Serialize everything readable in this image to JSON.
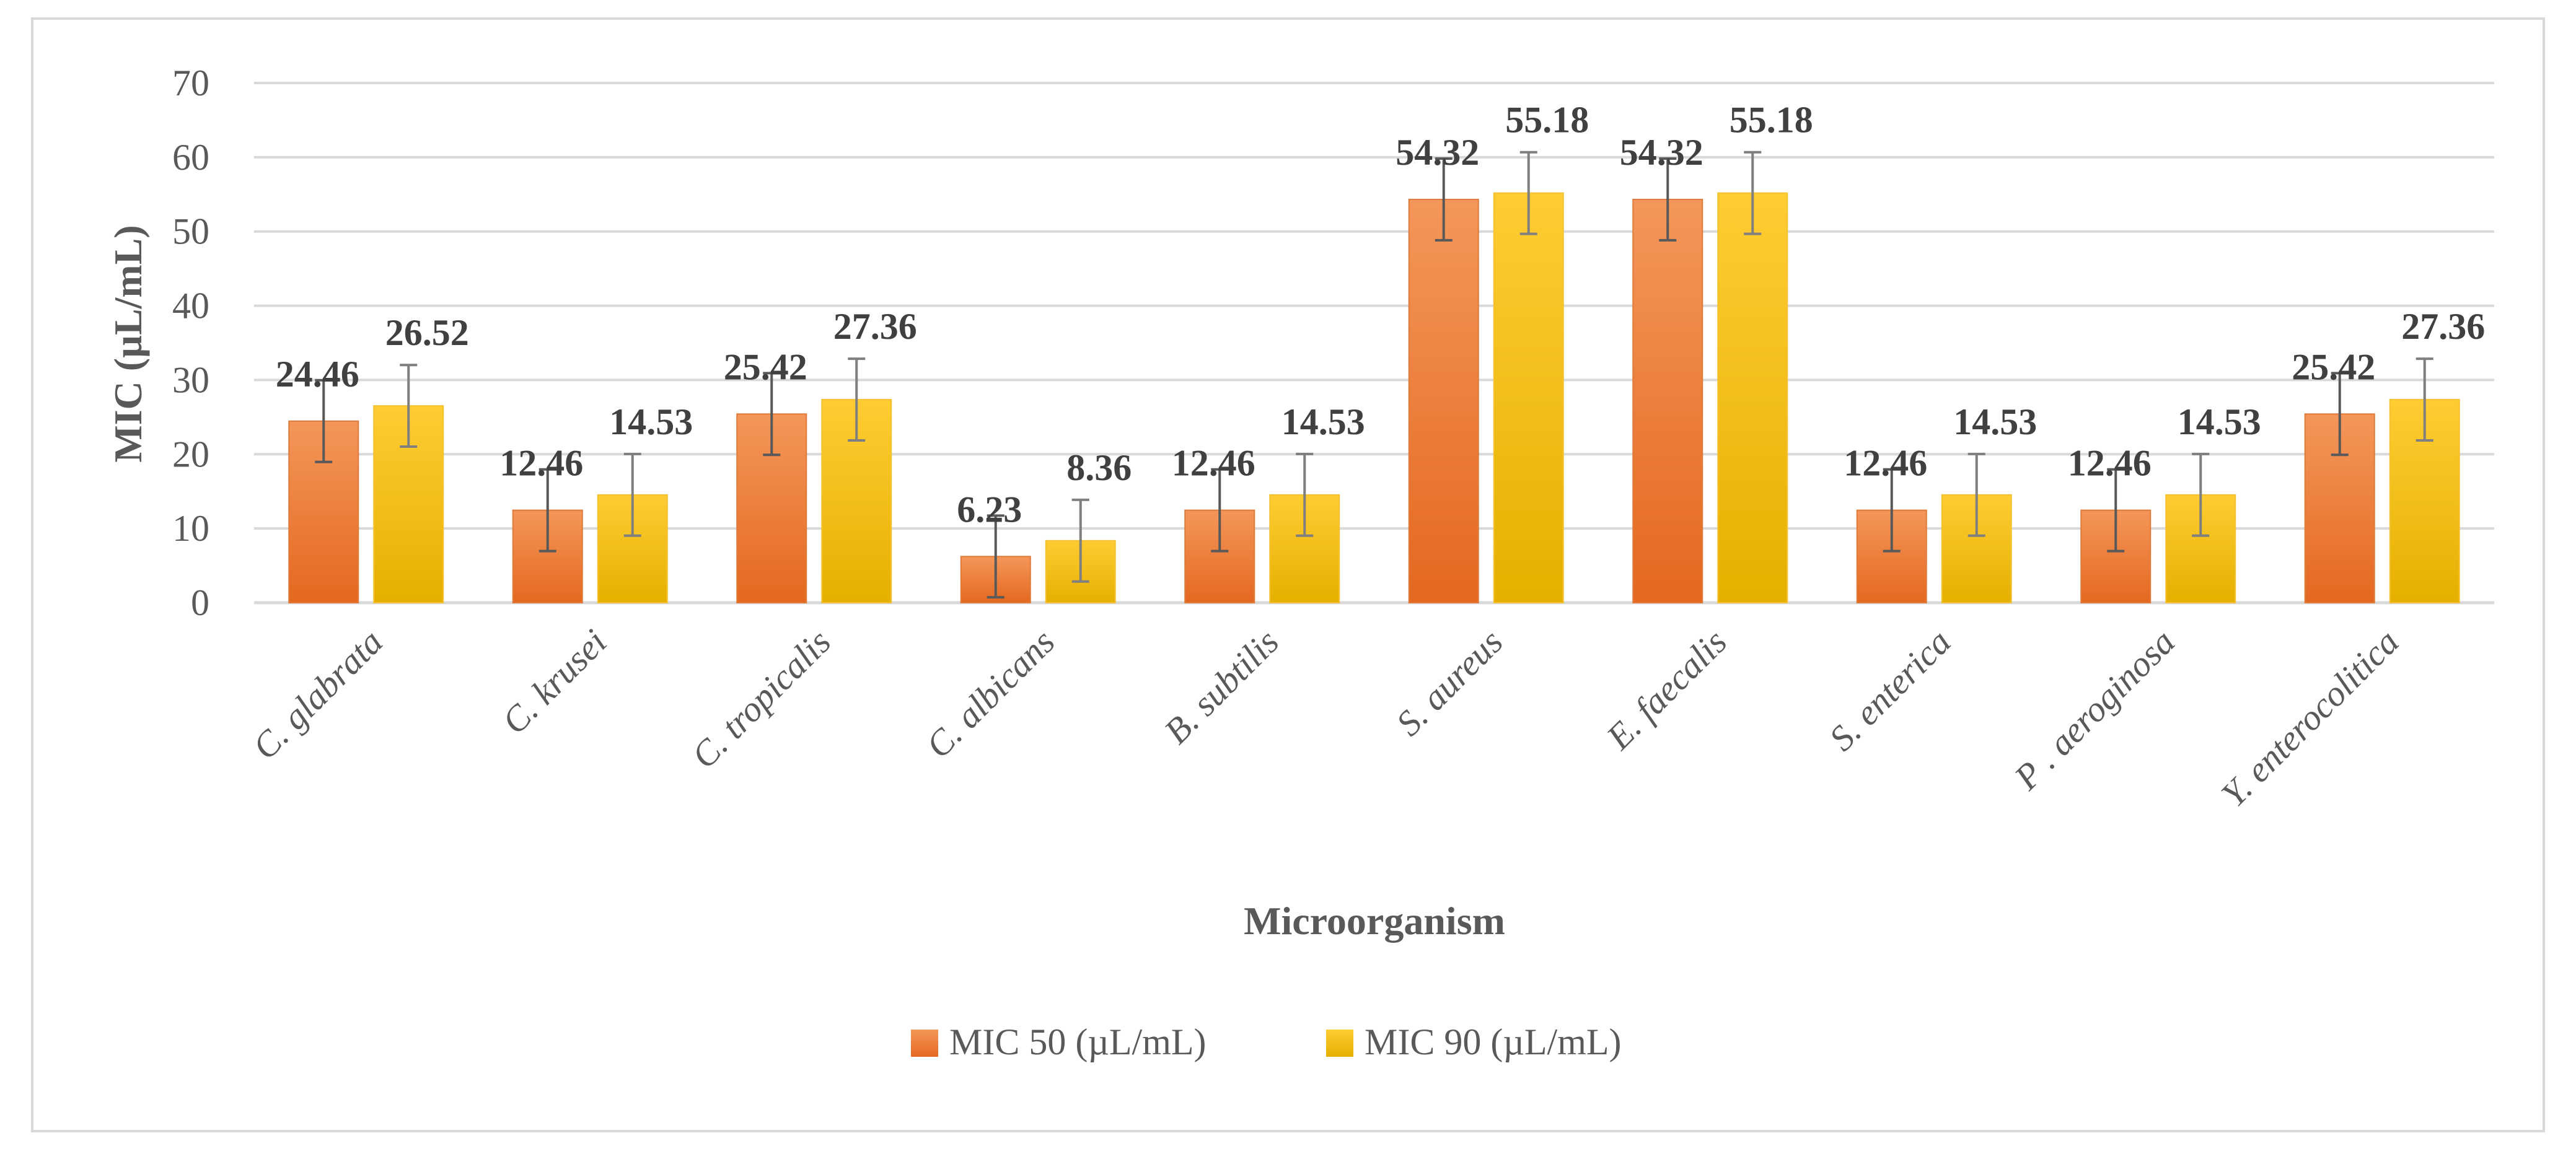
{
  "chart_data": {
    "type": "bar",
    "xlabel": "Microorganism",
    "ylabel": "MIC (µL/mL)",
    "ylim": [
      0,
      70
    ],
    "yticks": [
      0,
      10,
      20,
      30,
      40,
      50,
      60,
      70
    ],
    "grid": true,
    "legend_position": "bottom",
    "categories": [
      "C. glabrata",
      "C. krusei",
      "C. tropicalis",
      "C. albicans",
      "B. subtilis",
      "S. aureus",
      "E. faecalis",
      "S. enterica",
      "P . aeroginosa",
      "Y. enterocolitica"
    ],
    "series": [
      {
        "name": "MIC 50 (µL/mL)",
        "color": "#ed7d31",
        "values": [
          24.46,
          12.46,
          25.42,
          6.23,
          12.46,
          54.32,
          54.32,
          12.46,
          12.46,
          25.42
        ],
        "error": [
          5.5,
          5.5,
          5.5,
          5.5,
          5.5,
          5.5,
          5.5,
          5.5,
          5.5,
          5.5
        ]
      },
      {
        "name": "MIC 90 (µL/mL)",
        "color": "#ffc000",
        "values": [
          26.52,
          14.53,
          27.36,
          8.36,
          14.53,
          55.18,
          55.18,
          14.53,
          14.53,
          27.36
        ],
        "error": [
          5.5,
          5.5,
          5.5,
          5.5,
          5.5,
          5.5,
          5.5,
          5.5,
          5.5,
          5.5
        ]
      }
    ]
  }
}
